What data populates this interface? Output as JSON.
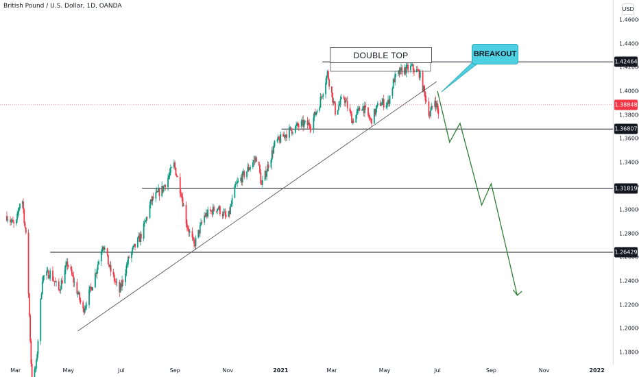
{
  "header": {
    "title": "British Pound / U.S. Dollar, 1D, OANDA"
  },
  "currency_label": "USD",
  "chart_data": {
    "type": "candlestick",
    "symbol": "British Pound / U.S. Dollar",
    "interval": "1D",
    "exchange": "OANDA",
    "y_ticks": [
      "1.46000",
      "1.44000",
      "1.42000",
      "1.40000",
      "1.38000",
      "1.36000",
      "1.34000",
      "1.32000",
      "1.30000",
      "1.28000",
      "1.26000",
      "1.24000",
      "1.22000",
      "1.20000",
      "1.18000"
    ],
    "x_ticks": [
      "Mar",
      "May",
      "Jul",
      "Sep",
      "Nov",
      "2021",
      "Mar",
      "May",
      "Jul",
      "Sep",
      "Nov",
      "2022"
    ],
    "bold_x_ticks": [
      "2021",
      "2022"
    ],
    "current_price": "1.38848",
    "levels": [
      {
        "label": "1.42464",
        "value": 1.42464
      },
      {
        "label": "1.36807",
        "value": 1.36807
      },
      {
        "label": "1.31819",
        "value": 1.31819
      },
      {
        "label": "1.26429",
        "value": 1.26429
      }
    ],
    "annotations": [
      {
        "text": "DOUBLE TOP"
      },
      {
        "text": "BREAKOUT"
      }
    ],
    "trendline": {
      "from": [
        "2020-05-12",
        1.198
      ],
      "to": [
        "2021-06-30",
        1.408
      ]
    },
    "projection": [
      [
        "2021-07-01",
        1.4
      ],
      [
        "2021-07-15",
        1.357
      ],
      [
        "2021-07-27",
        1.373
      ],
      [
        "2021-08-21",
        1.304
      ],
      [
        "2021-09-01",
        1.322
      ],
      [
        "2021-10-01",
        1.228
      ]
    ],
    "price_path": [
      [
        "2020-02-20",
        1.295
      ],
      [
        "2020-03-01",
        1.285
      ],
      [
        "2020-03-08",
        1.315
      ],
      [
        "2020-03-14",
        1.27
      ],
      [
        "2020-03-20",
        1.152
      ],
      [
        "2020-03-25",
        1.17
      ],
      [
        "2020-04-01",
        1.243
      ],
      [
        "2020-04-10",
        1.247
      ],
      [
        "2020-04-20",
        1.232
      ],
      [
        "2020-04-30",
        1.255
      ],
      [
        "2020-05-10",
        1.234
      ],
      [
        "2020-05-18",
        1.215
      ],
      [
        "2020-05-30",
        1.24
      ],
      [
        "2020-06-10",
        1.272
      ],
      [
        "2020-06-18",
        1.25
      ],
      [
        "2020-06-29",
        1.231
      ],
      [
        "2020-07-10",
        1.26
      ],
      [
        "2020-07-25",
        1.28
      ],
      [
        "2020-08-05",
        1.308
      ],
      [
        "2020-08-18",
        1.318
      ],
      [
        "2020-08-31",
        1.338
      ],
      [
        "2020-09-08",
        1.315
      ],
      [
        "2020-09-15",
        1.287
      ],
      [
        "2020-09-23",
        1.27
      ],
      [
        "2020-10-05",
        1.295
      ],
      [
        "2020-10-20",
        1.302
      ],
      [
        "2020-11-01",
        1.292
      ],
      [
        "2020-11-10",
        1.32
      ],
      [
        "2020-11-20",
        1.33
      ],
      [
        "2020-12-05",
        1.345
      ],
      [
        "2020-12-10",
        1.32
      ],
      [
        "2020-12-25",
        1.355
      ],
      [
        "2021-01-10",
        1.366
      ],
      [
        "2021-01-25",
        1.372
      ],
      [
        "2021-02-05",
        1.372
      ],
      [
        "2021-02-15",
        1.39
      ],
      [
        "2021-02-24",
        1.415
      ],
      [
        "2021-03-05",
        1.383
      ],
      [
        "2021-03-15",
        1.395
      ],
      [
        "2021-03-25",
        1.375
      ],
      [
        "2021-04-05",
        1.388
      ],
      [
        "2021-04-15",
        1.375
      ],
      [
        "2021-04-25",
        1.39
      ],
      [
        "2021-05-05",
        1.39
      ],
      [
        "2021-05-12",
        1.41
      ],
      [
        "2021-05-20",
        1.417
      ],
      [
        "2021-06-01",
        1.42
      ],
      [
        "2021-06-10",
        1.415
      ],
      [
        "2021-06-17",
        1.395
      ],
      [
        "2021-06-22",
        1.38
      ],
      [
        "2021-06-28",
        1.393
      ],
      [
        "2021-07-02",
        1.382
      ]
    ]
  }
}
